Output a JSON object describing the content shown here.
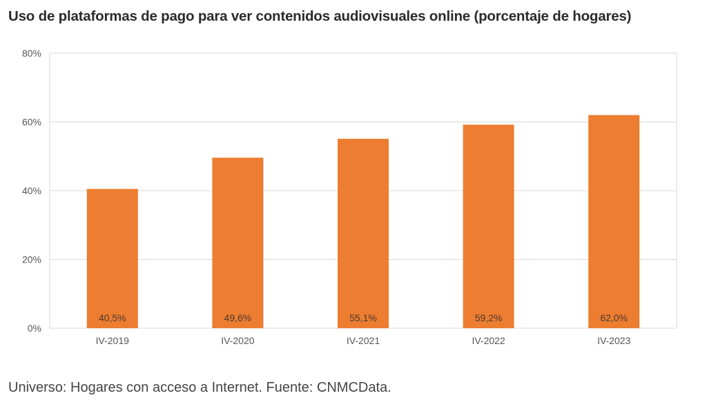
{
  "chart_data": {
    "type": "bar",
    "title": "Uso de plataformas de pago para ver contenidos audiovisuales online (porcentaje de hogares)",
    "categories": [
      "IV-2019",
      "IV-2020",
      "IV-2021",
      "IV-2022",
      "IV-2023"
    ],
    "values": [
      40.5,
      49.6,
      55.1,
      59.2,
      62.0
    ],
    "data_labels": [
      "40,5%",
      "49,6%",
      "55,1%",
      "59,2%",
      "62,0%"
    ],
    "ylim": [
      0,
      80
    ],
    "yticks": [
      0,
      20,
      40,
      60,
      80
    ],
    "ytick_labels": [
      "0%",
      "20%",
      "40%",
      "60%",
      "80%"
    ],
    "xlabel": "",
    "ylabel": "",
    "grid": true,
    "bar_color": "#ed7d31",
    "grid_color": "#d9d9d9"
  },
  "footer": "Universo: Hogares con acceso a Internet. Fuente: CNMCData."
}
